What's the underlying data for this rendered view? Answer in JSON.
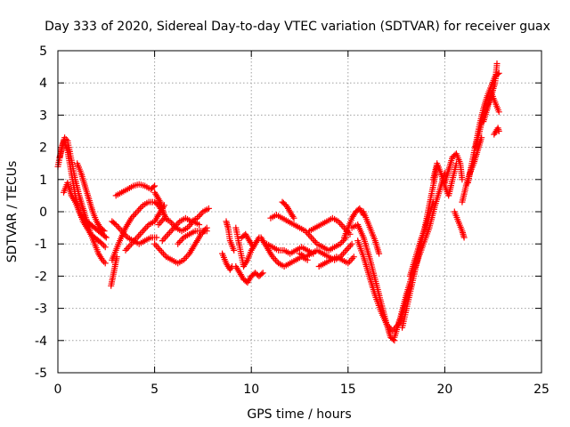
{
  "chart_data": {
    "type": "scatter",
    "title": "Day 333 of 2020, Sidereal Day-to-day VTEC variation (SDTVAR) for receiver guax",
    "xlabel": "GPS time / hours",
    "ylabel": "SDTVAR / TECUs",
    "xlim": [
      0,
      25
    ],
    "ylim": [
      -5,
      5
    ],
    "x_ticks": [
      "0",
      "5",
      "10",
      "15",
      "20",
      "25"
    ],
    "y_ticks": [
      "5",
      "4",
      "3",
      "2",
      "1",
      "0",
      "-1",
      "-2",
      "-3",
      "-4",
      "-5"
    ],
    "grid": true,
    "marker": "+",
    "color": "#ff0000",
    "series": [
      {
        "name": "SDTVAR",
        "traces": [
          {
            "x": [
              0.0,
              0.2,
              0.35,
              0.5,
              0.7,
              0.9,
              1.1,
              1.3,
              1.5,
              1.7,
              1.9,
              2.1,
              2.3,
              2.45
            ],
            "y": [
              1.4,
              2.0,
              2.3,
              2.2,
              1.6,
              1.0,
              0.5,
              0.1,
              -0.3,
              -0.7,
              -1.0,
              -1.3,
              -1.5,
              -1.6
            ]
          },
          {
            "x": [
              0.1,
              0.3,
              0.5,
              0.7,
              0.9,
              1.1,
              1.3,
              1.5,
              1.7,
              1.9,
              2.1,
              2.3,
              2.45
            ],
            "y": [
              1.7,
              2.2,
              1.9,
              1.2,
              0.5,
              0.0,
              -0.3,
              -0.5,
              -0.7,
              -0.8,
              -0.9,
              -1.0,
              -1.1
            ]
          },
          {
            "x": [
              0.3,
              0.5,
              0.7,
              0.9,
              1.1,
              1.3,
              1.5,
              1.7,
              1.9,
              2.1,
              2.3,
              2.5
            ],
            "y": [
              0.6,
              0.9,
              0.5,
              0.3,
              0.0,
              -0.2,
              -0.3,
              -0.4,
              -0.5,
              -0.6,
              -0.7,
              -0.8
            ]
          },
          {
            "x": [
              1.0,
              1.2,
              1.4,
              1.6,
              1.8,
              2.0,
              2.2,
              2.4
            ],
            "y": [
              1.5,
              1.2,
              0.8,
              0.4,
              0.0,
              -0.3,
              -0.5,
              -0.6
            ]
          },
          {
            "x": [
              2.75,
              2.85,
              2.95,
              3.05
            ],
            "y": [
              -2.3,
              -2.0,
              -1.7,
              -1.4
            ]
          },
          {
            "x": [
              2.8,
              3.0,
              3.2,
              3.5,
              3.8,
              4.1,
              4.4,
              4.7,
              5.0,
              5.2,
              5.4
            ],
            "y": [
              -1.5,
              -1.2,
              -0.9,
              -0.5,
              -0.2,
              0.0,
              0.2,
              0.3,
              0.3,
              0.2,
              0.0
            ]
          },
          {
            "x": [
              3.0,
              3.3,
              3.6,
              3.9,
              4.2,
              4.5,
              4.8,
              5.0
            ],
            "y": [
              0.5,
              0.6,
              0.7,
              0.8,
              0.85,
              0.8,
              0.7,
              0.8
            ]
          },
          {
            "x": [
              2.8,
              3.0,
              3.3,
              3.6,
              3.9,
              4.2,
              4.5,
              4.8,
              5.1
            ],
            "y": [
              -0.3,
              -0.4,
              -0.6,
              -0.8,
              -0.9,
              -1.0,
              -0.9,
              -0.8,
              -0.8
            ]
          },
          {
            "x": [
              3.5,
              3.8,
              4.1,
              4.4,
              4.7,
              5.0,
              5.2,
              5.4,
              5.5
            ],
            "y": [
              -1.2,
              -1.0,
              -0.8,
              -0.6,
              -0.4,
              -0.3,
              -0.1,
              0.1,
              0.2
            ]
          },
          {
            "x": [
              5.0,
              5.1,
              5.2,
              5.3,
              5.4,
              5.5,
              5.6
            ],
            "y": [
              0.6,
              0.5,
              0.4,
              0.3,
              0.1,
              -0.1,
              -0.2
            ]
          },
          {
            "x": [
              5.0,
              5.3,
              5.6,
              5.9,
              6.2,
              6.5,
              6.8,
              7.1,
              7.4,
              7.7
            ],
            "y": [
              -1.0,
              -1.2,
              -1.4,
              -1.5,
              -1.6,
              -1.5,
              -1.3,
              -1.0,
              -0.7,
              -0.5
            ]
          },
          {
            "x": [
              5.2,
              5.5,
              5.8,
              6.1,
              6.4,
              6.7,
              7.0,
              7.3
            ],
            "y": [
              -0.4,
              -0.2,
              -0.3,
              -0.5,
              -0.6,
              -0.5,
              -0.3,
              -0.4
            ]
          },
          {
            "x": [
              5.4,
              5.7,
              6.0,
              6.3,
              6.6,
              6.9,
              7.2,
              7.5,
              7.8
            ],
            "y": [
              -0.9,
              -0.7,
              -0.5,
              -0.3,
              -0.2,
              -0.3,
              -0.2,
              0.0,
              0.1
            ]
          },
          {
            "x": [
              6.2,
              6.5,
              6.8,
              7.1,
              7.4,
              7.7
            ],
            "y": [
              -1.0,
              -0.8,
              -0.7,
              -0.6,
              -0.6,
              -0.6
            ]
          },
          {
            "x": [
              8.5,
              8.7,
              8.9,
              9.0
            ],
            "y": [
              -1.3,
              -1.6,
              -1.8,
              -1.7
            ]
          },
          {
            "x": [
              8.7,
              8.8,
              8.9,
              9.1
            ],
            "y": [
              -0.3,
              -0.5,
              -0.9,
              -1.2
            ]
          },
          {
            "x": [
              9.2,
              9.4,
              9.6,
              9.8,
              10.0,
              10.2,
              10.4,
              10.6
            ],
            "y": [
              -1.7,
              -1.9,
              -2.1,
              -2.2,
              -2.0,
              -1.9,
              -2.0,
              -1.9
            ]
          },
          {
            "x": [
              9.2,
              9.4,
              9.6,
              9.8,
              10.0,
              10.2,
              10.4
            ],
            "y": [
              -0.5,
              -1.1,
              -1.7,
              -1.5,
              -1.2,
              -1.0,
              -0.8
            ]
          },
          {
            "x": [
              9.5,
              9.7,
              9.9,
              10.1
            ],
            "y": [
              -0.8,
              -0.7,
              -0.9,
              -1.1
            ]
          },
          {
            "x": [
              10.5,
              10.8,
              11.1,
              11.4,
              11.7,
              12.0,
              12.3,
              12.6,
              12.9
            ],
            "y": [
              -0.8,
              -1.1,
              -1.4,
              -1.6,
              -1.7,
              -1.6,
              -1.5,
              -1.4,
              -1.5
            ]
          },
          {
            "x": [
              10.8,
              11.1,
              11.4,
              11.7,
              12.0,
              12.3,
              12.6,
              12.9,
              13.2
            ],
            "y": [
              -1.0,
              -1.1,
              -1.2,
              -1.2,
              -1.3,
              -1.2,
              -1.1,
              -1.2,
              -1.3
            ]
          },
          {
            "x": [
              11.0,
              11.3,
              11.6,
              11.9,
              12.2,
              12.5,
              12.8,
              13.1,
              13.4,
              13.7,
              14.0,
              14.3,
              14.6,
              14.9
            ],
            "y": [
              -0.2,
              -0.1,
              -0.2,
              -0.3,
              -0.4,
              -0.5,
              -0.6,
              -0.8,
              -1.0,
              -1.1,
              -1.2,
              -1.1,
              -1.0,
              -0.8
            ]
          },
          {
            "x": [
              11.6,
              11.8,
              12.0,
              12.2
            ],
            "y": [
              0.3,
              0.2,
              0.0,
              -0.2
            ]
          },
          {
            "x": [
              12.5,
              12.8,
              13.1,
              13.4,
              13.7,
              14.0,
              14.3,
              14.6,
              14.9,
              15.2
            ],
            "y": [
              -1.3,
              -1.4,
              -1.3,
              -1.2,
              -1.3,
              -1.4,
              -1.5,
              -1.4,
              -1.2,
              -1.0
            ]
          },
          {
            "x": [
              13.0,
              13.3,
              13.6,
              13.9,
              14.2,
              14.5,
              14.8,
              15.1
            ],
            "y": [
              -0.6,
              -0.5,
              -0.4,
              -0.3,
              -0.2,
              -0.3,
              -0.5,
              -0.7
            ]
          },
          {
            "x": [
              13.5,
              13.8,
              14.1,
              14.4,
              14.7,
              15.0,
              15.3
            ],
            "y": [
              -1.7,
              -1.6,
              -1.5,
              -1.4,
              -1.5,
              -1.6,
              -1.4
            ]
          },
          {
            "x": [
              14.8,
              15.0,
              15.2,
              15.4,
              15.6,
              15.8
            ],
            "y": [
              -0.8,
              -0.5,
              -0.2,
              0.0,
              0.1,
              -0.1
            ]
          },
          {
            "x": [
              15.2,
              15.5,
              15.8,
              16.1,
              16.4,
              16.7,
              17.0,
              17.2,
              17.4
            ],
            "y": [
              -0.5,
              -0.4,
              -0.8,
              -1.4,
              -2.1,
              -2.8,
              -3.5,
              -3.9,
              -4.0
            ]
          },
          {
            "x": [
              15.5,
              15.8,
              16.1,
              16.4,
              16.7,
              17.0,
              17.3,
              17.6,
              17.9,
              18.2
            ],
            "y": [
              -0.9,
              -1.4,
              -2.0,
              -2.6,
              -3.1,
              -3.5,
              -3.7,
              -3.5,
              -3.0,
              -2.3
            ]
          },
          {
            "x": [
              15.8,
              16.0,
              16.2,
              16.4,
              16.6
            ],
            "y": [
              0.0,
              -0.3,
              -0.6,
              -0.9,
              -1.3
            ]
          },
          {
            "x": [
              17.4,
              17.7,
              18.0,
              18.3,
              18.6,
              18.9,
              19.2,
              19.5,
              19.8,
              20.0
            ],
            "y": [
              -3.9,
              -3.3,
              -2.6,
              -2.0,
              -1.5,
              -1.0,
              -0.5,
              0.2,
              0.8,
              1.2
            ]
          },
          {
            "x": [
              17.8,
              18.1,
              18.4,
              18.7,
              19.0,
              19.3,
              19.6
            ],
            "y": [
              -3.6,
              -2.8,
              -2.0,
              -1.2,
              -0.4,
              0.5,
              1.4
            ]
          },
          {
            "x": [
              18.2,
              18.5,
              18.8,
              19.1,
              19.4
            ],
            "y": [
              -2.0,
              -1.4,
              -0.8,
              -0.3,
              0.3
            ]
          },
          {
            "x": [
              19.4,
              19.6,
              19.8,
              20.0,
              20.2,
              20.4,
              20.6
            ],
            "y": [
              1.0,
              1.5,
              1.2,
              0.8,
              0.5,
              1.0,
              1.5
            ]
          },
          {
            "x": [
              20.0,
              20.2,
              20.4,
              20.6,
              20.8,
              20.9
            ],
            "y": [
              0.9,
              1.3,
              1.7,
              1.8,
              1.5,
              1.0
            ]
          },
          {
            "x": [
              20.5,
              20.7,
              20.9,
              21.0
            ],
            "y": [
              0.0,
              -0.3,
              -0.6,
              -0.8
            ]
          },
          {
            "x": [
              20.9,
              21.1,
              21.3,
              21.5,
              21.7,
              21.9
            ],
            "y": [
              0.3,
              0.8,
              1.2,
              1.5,
              1.9,
              2.3
            ]
          },
          {
            "x": [
              21.2,
              21.4,
              21.6,
              21.8,
              22.0,
              22.2,
              22.4,
              22.6,
              22.8
            ],
            "y": [
              0.9,
              1.5,
              2.1,
              2.7,
              3.2,
              3.6,
              3.9,
              4.2,
              4.3
            ]
          },
          {
            "x": [
              21.6,
              21.8,
              22.0,
              22.2,
              22.4,
              22.6,
              22.7
            ],
            "y": [
              2.0,
              2.5,
              3.0,
              3.3,
              3.6,
              4.0,
              4.6
            ]
          },
          {
            "x": [
              22.0,
              22.2,
              22.4,
              22.6,
              22.8
            ],
            "y": [
              2.8,
              3.2,
              3.7,
              3.4,
              3.1
            ]
          },
          {
            "x": [
              22.55,
              22.65,
              22.75,
              22.8
            ],
            "y": [
              2.4,
              2.5,
              2.6,
              2.5
            ]
          }
        ]
      }
    ]
  }
}
